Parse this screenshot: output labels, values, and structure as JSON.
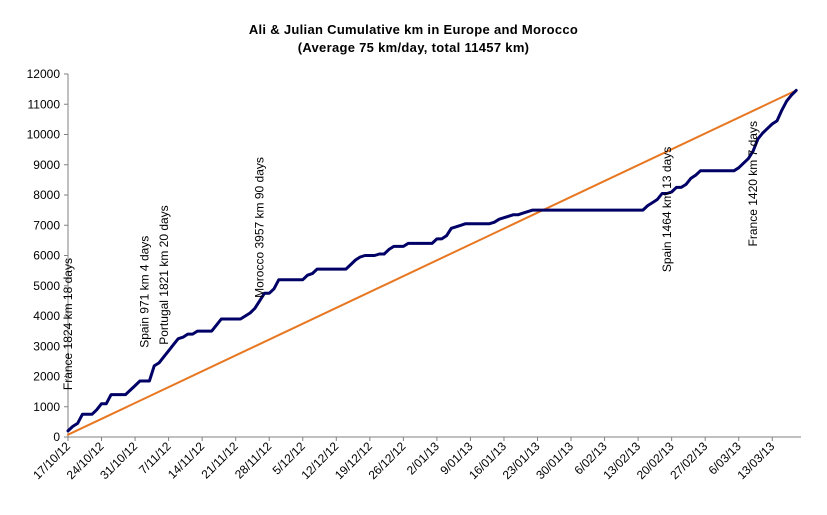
{
  "chart_data": {
    "type": "line",
    "title": "Ali & Julian Cumulative km  in Europe and Morocco",
    "subtitle": "(Average 75 km/day, total 11457 km)",
    "xlabel": "",
    "ylabel": "",
    "ylim": [
      0,
      12000
    ],
    "yticks": [
      0,
      1000,
      2000,
      3000,
      4000,
      5000,
      6000,
      7000,
      8000,
      9000,
      10000,
      11000,
      12000
    ],
    "x_range_days": [
      0,
      153
    ],
    "xticks": [
      {
        "label": "17/10/12",
        "day": 0
      },
      {
        "label": "24/10/12",
        "day": 7
      },
      {
        "label": "31/10/12",
        "day": 14
      },
      {
        "label": "7/11/12",
        "day": 21
      },
      {
        "label": "14/11/12",
        "day": 28
      },
      {
        "label": "21/11/12",
        "day": 35
      },
      {
        "label": "28/11/12",
        "day": 42
      },
      {
        "label": "5/12/12",
        "day": 49
      },
      {
        "label": "12/12/12",
        "day": 56
      },
      {
        "label": "19/12/12",
        "day": 63
      },
      {
        "label": "26/12/12",
        "day": 70
      },
      {
        "label": "2/01/13",
        "day": 77
      },
      {
        "label": "9/01/13",
        "day": 84
      },
      {
        "label": "16/01/13",
        "day": 91
      },
      {
        "label": "23/01/13",
        "day": 98
      },
      {
        "label": "30/01/13",
        "day": 105
      },
      {
        "label": "6/02/13",
        "day": 112
      },
      {
        "label": "13/02/13",
        "day": 119
      },
      {
        "label": "20/02/13",
        "day": 126
      },
      {
        "label": "27/02/13",
        "day": 133
      },
      {
        "label": "6/03/13",
        "day": 140
      },
      {
        "label": "13/03/13",
        "day": 147
      }
    ],
    "grid": false,
    "series": [
      {
        "name": "",
        "color": "#000066",
        "points": [
          [
            0,
            200
          ],
          [
            1,
            350
          ],
          [
            2,
            450
          ],
          [
            3,
            750
          ],
          [
            4,
            750
          ],
          [
            5,
            750
          ],
          [
            6,
            900
          ],
          [
            7,
            1100
          ],
          [
            8,
            1100
          ],
          [
            9,
            1400
          ],
          [
            10,
            1400
          ],
          [
            11,
            1400
          ],
          [
            12,
            1400
          ],
          [
            13,
            1550
          ],
          [
            14,
            1700
          ],
          [
            15,
            1850
          ],
          [
            16,
            1850
          ],
          [
            17,
            1850
          ],
          [
            18,
            2350
          ],
          [
            19,
            2450
          ],
          [
            20,
            2650
          ],
          [
            21,
            2850
          ],
          [
            22,
            3050
          ],
          [
            23,
            3250
          ],
          [
            24,
            3300
          ],
          [
            25,
            3400
          ],
          [
            26,
            3400
          ],
          [
            27,
            3500
          ],
          [
            28,
            3500
          ],
          [
            29,
            3500
          ],
          [
            30,
            3500
          ],
          [
            31,
            3700
          ],
          [
            32,
            3900
          ],
          [
            33,
            3900
          ],
          [
            34,
            3900
          ],
          [
            35,
            3900
          ],
          [
            36,
            3900
          ],
          [
            37,
            4000
          ],
          [
            38,
            4100
          ],
          [
            39,
            4250
          ],
          [
            40,
            4500
          ],
          [
            41,
            4750
          ],
          [
            42,
            4750
          ],
          [
            43,
            4900
          ],
          [
            44,
            5200
          ],
          [
            45,
            5200
          ],
          [
            46,
            5200
          ],
          [
            47,
            5200
          ],
          [
            48,
            5200
          ],
          [
            49,
            5200
          ],
          [
            50,
            5350
          ],
          [
            51,
            5400
          ],
          [
            52,
            5550
          ],
          [
            53,
            5550
          ],
          [
            54,
            5550
          ],
          [
            55,
            5550
          ],
          [
            56,
            5550
          ],
          [
            57,
            5550
          ],
          [
            58,
            5550
          ],
          [
            59,
            5700
          ],
          [
            60,
            5850
          ],
          [
            61,
            5950
          ],
          [
            62,
            6000
          ],
          [
            63,
            6000
          ],
          [
            64,
            6000
          ],
          [
            65,
            6050
          ],
          [
            66,
            6050
          ],
          [
            67,
            6200
          ],
          [
            68,
            6300
          ],
          [
            69,
            6300
          ],
          [
            70,
            6300
          ],
          [
            71,
            6400
          ],
          [
            72,
            6400
          ],
          [
            73,
            6400
          ],
          [
            74,
            6400
          ],
          [
            75,
            6400
          ],
          [
            76,
            6400
          ],
          [
            77,
            6550
          ],
          [
            78,
            6550
          ],
          [
            79,
            6650
          ],
          [
            80,
            6900
          ],
          [
            81,
            6950
          ],
          [
            82,
            7000
          ],
          [
            83,
            7050
          ],
          [
            84,
            7050
          ],
          [
            85,
            7050
          ],
          [
            86,
            7050
          ],
          [
            87,
            7050
          ],
          [
            88,
            7050
          ],
          [
            89,
            7100
          ],
          [
            90,
            7200
          ],
          [
            91,
            7250
          ],
          [
            92,
            7300
          ],
          [
            93,
            7350
          ],
          [
            94,
            7350
          ],
          [
            95,
            7400
          ],
          [
            96,
            7450
          ],
          [
            97,
            7500
          ],
          [
            98,
            7500
          ],
          [
            99,
            7500
          ],
          [
            100,
            7500
          ],
          [
            101,
            7500
          ],
          [
            102,
            7500
          ],
          [
            103,
            7500
          ],
          [
            104,
            7500
          ],
          [
            105,
            7500
          ],
          [
            106,
            7500
          ],
          [
            107,
            7500
          ],
          [
            108,
            7500
          ],
          [
            109,
            7500
          ],
          [
            110,
            7500
          ],
          [
            111,
            7500
          ],
          [
            112,
            7500
          ],
          [
            113,
            7500
          ],
          [
            114,
            7500
          ],
          [
            115,
            7500
          ],
          [
            116,
            7500
          ],
          [
            117,
            7500
          ],
          [
            118,
            7500
          ],
          [
            119,
            7500
          ],
          [
            120,
            7500
          ],
          [
            121,
            7650
          ],
          [
            122,
            7750
          ],
          [
            123,
            7850
          ],
          [
            124,
            8050
          ],
          [
            125,
            8050
          ],
          [
            126,
            8100
          ],
          [
            127,
            8250
          ],
          [
            128,
            8250
          ],
          [
            129,
            8350
          ],
          [
            130,
            8550
          ],
          [
            131,
            8650
          ],
          [
            132,
            8800
          ],
          [
            133,
            8800
          ],
          [
            134,
            8800
          ],
          [
            135,
            8800
          ],
          [
            136,
            8800
          ],
          [
            137,
            8800
          ],
          [
            138,
            8800
          ],
          [
            139,
            8800
          ],
          [
            140,
            8900
          ],
          [
            141,
            9050
          ],
          [
            142,
            9200
          ],
          [
            143,
            9450
          ],
          [
            144,
            9850
          ],
          [
            145,
            10050
          ],
          [
            146,
            10200
          ],
          [
            147,
            10350
          ],
          [
            148,
            10450
          ],
          [
            149,
            10800
          ],
          [
            150,
            11100
          ],
          [
            151,
            11300
          ],
          [
            152,
            11457
          ]
        ]
      },
      {
        "name": "",
        "color": "#E87722",
        "points": [
          [
            0,
            75
          ],
          [
            152,
            11457
          ]
        ]
      }
    ],
    "annotations": [
      {
        "text": "France 1824 km 18 days",
        "x": 0,
        "y": 1550
      },
      {
        "text": "Spain 971 km 4 days",
        "x": 16,
        "y": 2950
      },
      {
        "text": "Portugal 1821 km 20 days",
        "x": 20,
        "y": 3050
      },
      {
        "text": "Morocco 3957 km 90 days",
        "x": 40,
        "y": 4600
      },
      {
        "text": "Spain 1464 km 13 days",
        "x": 125,
        "y": 5450
      },
      {
        "text": "France 1420 km 7 days",
        "x": 143,
        "y": 6300
      }
    ]
  }
}
